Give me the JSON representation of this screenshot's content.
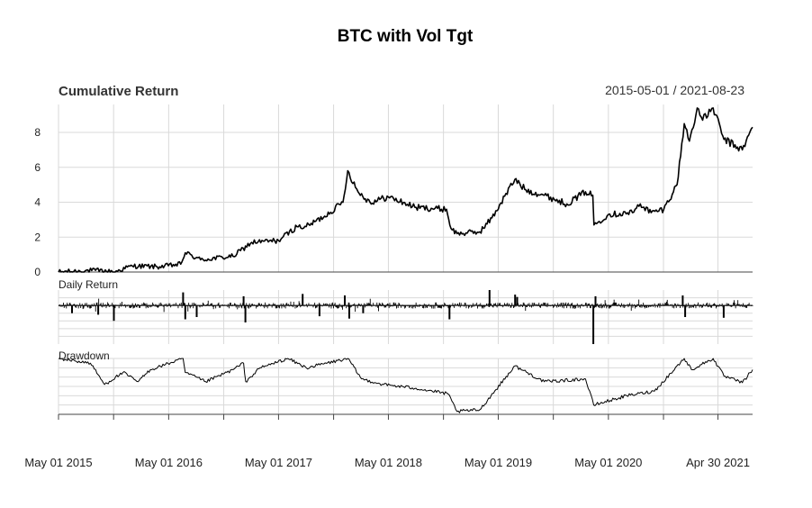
{
  "chart_data": {
    "type": "line",
    "title": "BTC with Vol Tgt",
    "date_range": "2015-05-01 / 2021-08-23",
    "x_start": "2015-05-01",
    "x_end": "2021-08-23",
    "x_tick_labels": [
      {
        "date": "2015-05-01",
        "label": "May 01 2015"
      },
      {
        "date": "2016-05-01",
        "label": "May 01 2016"
      },
      {
        "date": "2017-05-01",
        "label": "May 01 2017"
      },
      {
        "date": "2018-05-01",
        "label": "May 01 2018"
      },
      {
        "date": "2019-05-01",
        "label": "May 01 2019"
      },
      {
        "date": "2020-05-01",
        "label": "May 01 2020"
      },
      {
        "date": "2021-04-30",
        "label": "Apr 30 2021"
      }
    ],
    "panels": [
      {
        "name": "Cumulative Return",
        "type": "line",
        "ylim": [
          0,
          9.6
        ],
        "yticks": [
          0,
          2,
          4,
          6,
          8
        ],
        "series": {
          "name": "BTC with Vol Tgt",
          "points": [
            [
              "2015-05-01",
              0.0
            ],
            [
              "2015-09-01",
              0.1
            ],
            [
              "2015-11-01",
              0.0
            ],
            [
              "2016-01-01",
              0.35
            ],
            [
              "2016-04-01",
              0.3
            ],
            [
              "2016-06-10",
              0.45
            ],
            [
              "2016-06-25",
              1.1
            ],
            [
              "2016-08-15",
              0.7
            ],
            [
              "2016-12-01",
              0.9
            ],
            [
              "2017-02-01",
              1.7
            ],
            [
              "2017-05-01",
              1.8
            ],
            [
              "2017-07-01",
              2.6
            ],
            [
              "2017-08-01",
              2.6
            ],
            [
              "2017-10-01",
              3.2
            ],
            [
              "2017-12-01",
              4.0
            ],
            [
              "2017-12-17",
              5.8
            ],
            [
              "2018-01-20",
              4.6
            ],
            [
              "2018-03-01",
              4.0
            ],
            [
              "2018-05-01",
              4.3
            ],
            [
              "2018-08-01",
              3.7
            ],
            [
              "2018-11-10",
              3.6
            ],
            [
              "2018-11-25",
              2.5
            ],
            [
              "2018-12-15",
              2.2
            ],
            [
              "2019-03-01",
              2.3
            ],
            [
              "2019-04-10",
              3.1
            ],
            [
              "2019-06-25",
              5.3
            ],
            [
              "2019-08-01",
              4.7
            ],
            [
              "2019-10-01",
              4.4
            ],
            [
              "2019-12-15",
              3.9
            ],
            [
              "2020-02-15",
              4.6
            ],
            [
              "2020-03-10",
              4.4
            ],
            [
              "2020-03-14",
              2.7
            ],
            [
              "2020-05-01",
              3.3
            ],
            [
              "2020-07-20",
              3.4
            ],
            [
              "2020-08-15",
              3.9
            ],
            [
              "2020-09-20",
              3.4
            ],
            [
              "2020-11-01",
              3.6
            ],
            [
              "2020-12-15",
              5.0
            ],
            [
              "2021-01-08",
              8.5
            ],
            [
              "2021-01-25",
              7.5
            ],
            [
              "2021-02-20",
              9.4
            ],
            [
              "2021-03-10",
              8.7
            ],
            [
              "2021-04-14",
              9.4
            ],
            [
              "2021-05-20",
              7.6
            ],
            [
              "2021-07-20",
              7.0
            ],
            [
              "2021-08-23",
              8.3
            ]
          ]
        }
      },
      {
        "name": "Daily Return",
        "type": "bar",
        "ylim": [
          -0.5,
          0.2
        ],
        "description_of_series": "daily returns, mostly small; largest drop around 2020-03-12",
        "notable_returns": [
          [
            "2015-06-15",
            -0.1
          ],
          [
            "2015-09-10",
            -0.12
          ],
          [
            "2015-11-01",
            -0.2
          ],
          [
            "2016-06-18",
            0.17
          ],
          [
            "2016-06-25",
            -0.18
          ],
          [
            "2016-08-02",
            -0.15
          ],
          [
            "2017-01-05",
            0.12
          ],
          [
            "2017-01-11",
            -0.22
          ],
          [
            "2017-07-20",
            0.15
          ],
          [
            "2017-09-14",
            -0.14
          ],
          [
            "2017-12-07",
            0.13
          ],
          [
            "2017-12-22",
            -0.17
          ],
          [
            "2018-02-06",
            -0.1
          ],
          [
            "2018-11-20",
            -0.18
          ],
          [
            "2019-04-02",
            0.2
          ],
          [
            "2019-06-26",
            0.14
          ],
          [
            "2019-07-03",
            0.11
          ],
          [
            "2020-03-12",
            -0.5
          ],
          [
            "2020-03-19",
            0.12
          ],
          [
            "2021-01-03",
            0.13
          ],
          [
            "2021-01-11",
            -0.15
          ],
          [
            "2021-05-19",
            -0.16
          ]
        ]
      },
      {
        "name": "Drawdown",
        "type": "line",
        "ylim": [
          -0.6,
          0.0
        ],
        "series": {
          "name": "Drawdown",
          "points": [
            [
              "2015-05-01",
              0.0
            ],
            [
              "2015-08-15",
              -0.05
            ],
            [
              "2015-10-01",
              -0.28
            ],
            [
              "2015-12-01",
              -0.15
            ],
            [
              "2016-01-20",
              -0.25
            ],
            [
              "2016-03-01",
              -0.12
            ],
            [
              "2016-06-18",
              0.0
            ],
            [
              "2016-06-25",
              -0.15
            ],
            [
              "2016-09-01",
              -0.25
            ],
            [
              "2016-12-01",
              -0.12
            ],
            [
              "2017-01-05",
              -0.05
            ],
            [
              "2017-01-12",
              -0.25
            ],
            [
              "2017-03-01",
              -0.1
            ],
            [
              "2017-06-01",
              0.0
            ],
            [
              "2017-08-01",
              -0.1
            ],
            [
              "2017-12-17",
              0.0
            ],
            [
              "2018-02-01",
              -0.22
            ],
            [
              "2018-04-15",
              -0.28
            ],
            [
              "2018-08-01",
              -0.32
            ],
            [
              "2018-11-15",
              -0.38
            ],
            [
              "2018-12-15",
              -0.57
            ],
            [
              "2019-03-01",
              -0.55
            ],
            [
              "2019-06-25",
              -0.08
            ],
            [
              "2019-10-01",
              -0.25
            ],
            [
              "2020-02-15",
              -0.22
            ],
            [
              "2020-03-13",
              -0.5
            ],
            [
              "2020-07-01",
              -0.4
            ],
            [
              "2020-10-01",
              -0.35
            ],
            [
              "2021-01-08",
              0.0
            ],
            [
              "2021-02-01",
              -0.12
            ],
            [
              "2021-04-14",
              0.0
            ],
            [
              "2021-05-20",
              -0.19
            ],
            [
              "2021-07-20",
              -0.26
            ],
            [
              "2021-08-23",
              -0.12
            ]
          ]
        }
      }
    ]
  }
}
